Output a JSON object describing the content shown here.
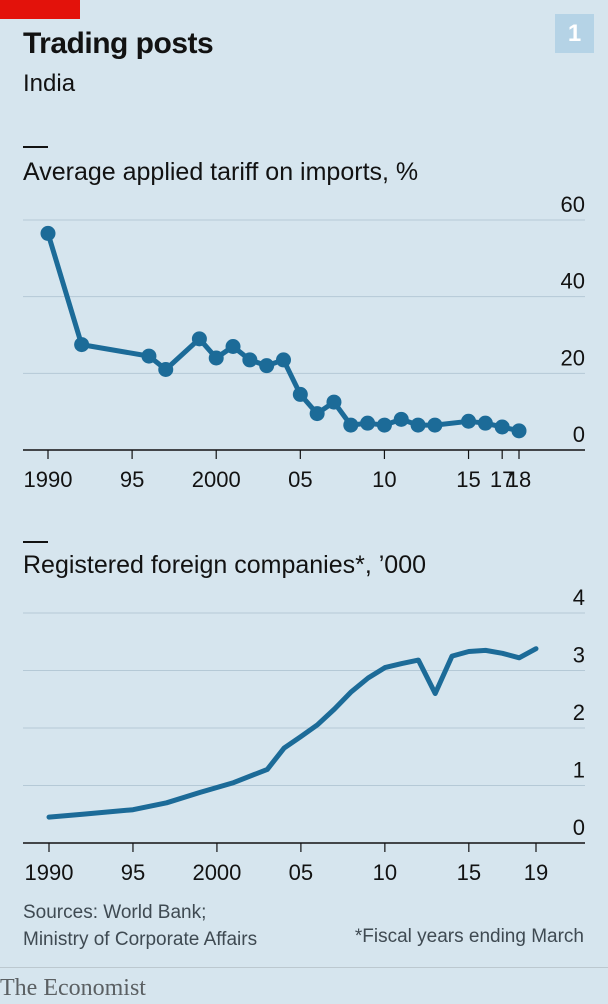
{
  "header": {
    "title": "Trading posts",
    "subtitle": "India",
    "chart_number": "1"
  },
  "colors": {
    "line": "#1c6b98",
    "accent": "#e3120b",
    "background": "#d6e5ee",
    "grid": "#b5c9d6"
  },
  "chart_data": [
    {
      "type": "line",
      "markers": true,
      "title": "Average applied tariff on imports, %",
      "x": [
        1990,
        1992,
        1996,
        1997,
        1999,
        2000,
        2001,
        2002,
        2003,
        2004,
        2005,
        2006,
        2007,
        2008,
        2009,
        2010,
        2011,
        2012,
        2013,
        2015,
        2016,
        2017,
        2018
      ],
      "y": [
        56.5,
        27.5,
        24.5,
        21,
        29,
        24,
        27,
        23.5,
        22,
        23.5,
        14.5,
        9.5,
        12.5,
        6.5,
        7,
        6.5,
        8,
        6.5,
        6.5,
        7.5,
        7,
        6,
        5
      ],
      "xticks": [
        1990,
        1995,
        2000,
        2005,
        2010,
        2015,
        2017,
        2018
      ],
      "xtick_labels": [
        "1990",
        "95",
        "2000",
        "05",
        "10",
        "15",
        "17",
        "18"
      ],
      "ylim": [
        0,
        60
      ],
      "yticks": [
        0,
        20,
        40,
        60
      ],
      "ytick_labels": [
        "0",
        "20",
        "40",
        "60"
      ],
      "grid": true,
      "y_axis_side": "right"
    },
    {
      "type": "line",
      "markers": false,
      "title": "Registered foreign companies*, ’000",
      "x": [
        1990,
        1992,
        1995,
        1997,
        1999,
        2001,
        2003,
        2004,
        2005,
        2006,
        2007,
        2008,
        2009,
        2010,
        2011,
        2012,
        2013,
        2014,
        2015,
        2016,
        2017,
        2018,
        2019
      ],
      "y": [
        0.45,
        0.5,
        0.58,
        0.7,
        0.88,
        1.05,
        1.28,
        1.65,
        1.85,
        2.06,
        2.33,
        2.63,
        2.87,
        3.05,
        3.12,
        3.18,
        2.6,
        3.25,
        3.33,
        3.35,
        3.3,
        3.22,
        3.38
      ],
      "xticks": [
        1990,
        1995,
        2000,
        2005,
        2010,
        2015,
        2019
      ],
      "xtick_labels": [
        "1990",
        "95",
        "2000",
        "05",
        "10",
        "15",
        "19"
      ],
      "ylim": [
        0,
        4
      ],
      "yticks": [
        0,
        1,
        2,
        3,
        4
      ],
      "ytick_labels": [
        "0",
        "1",
        "2",
        "3",
        "4"
      ],
      "grid": true,
      "y_axis_side": "right"
    }
  ],
  "footer": {
    "source_line1": "Sources: World Bank;",
    "source_line2": "Ministry of Corporate Affairs",
    "footnote": "*Fiscal years ending March",
    "brand": "The Economist"
  }
}
